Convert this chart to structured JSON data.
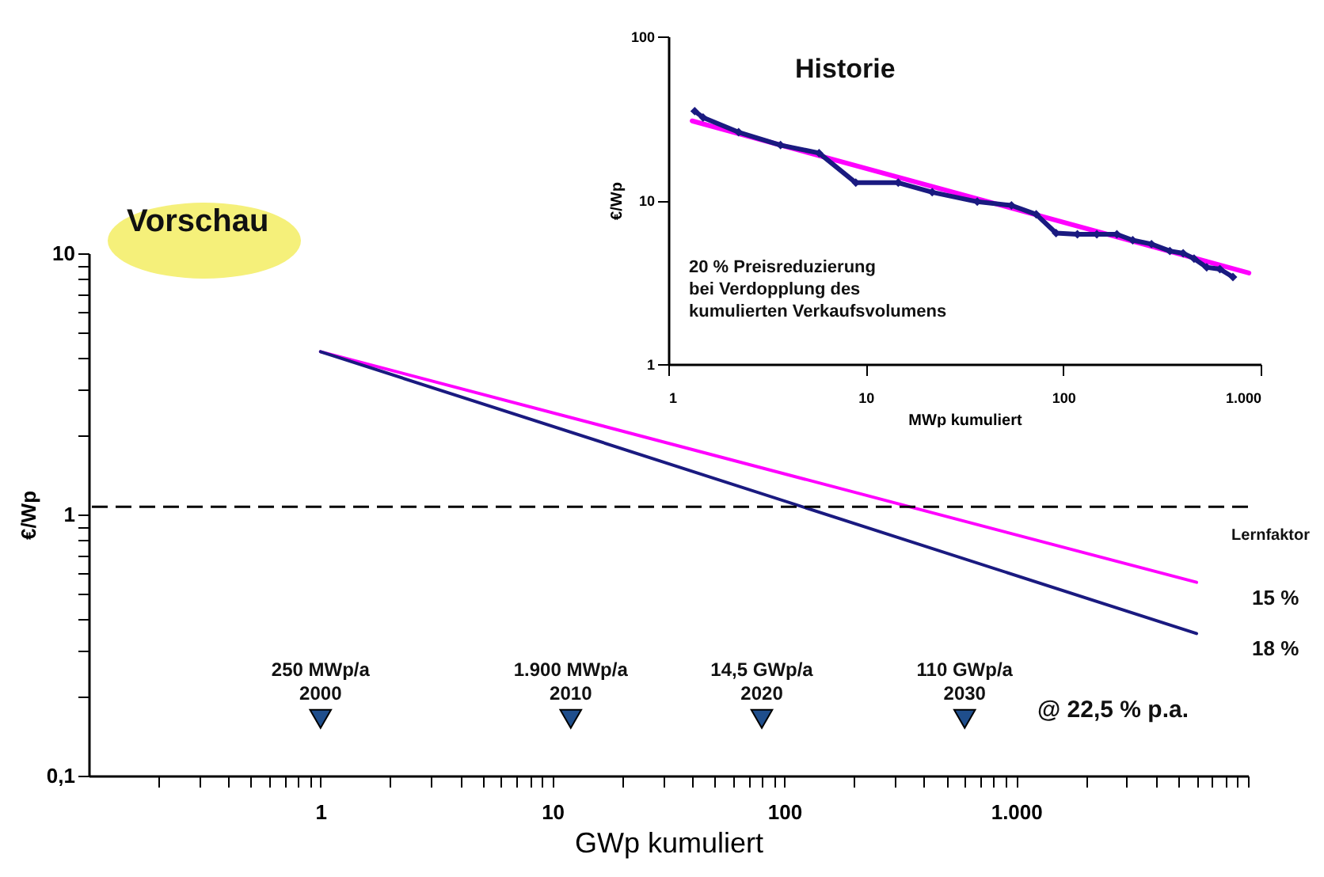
{
  "chart_data": [
    {
      "type": "line",
      "title": "Vorschau",
      "xlabel": "GWp kumuliert",
      "ylabel": "€/Wp",
      "legend_title": "Lernfaktor",
      "log": "xy",
      "xlim": [
        0.1,
        10000
      ],
      "ylim": [
        0.1,
        10
      ],
      "xticks": [
        {
          "value": 0.2,
          "label": null
        },
        {
          "value": 0.3,
          "label": null
        },
        {
          "value": 0.4,
          "label": null
        },
        {
          "value": 0.5,
          "label": null
        },
        {
          "value": 0.6,
          "label": null
        },
        {
          "value": 0.7,
          "label": null
        },
        {
          "value": 0.8,
          "label": null
        },
        {
          "value": 0.9,
          "label": null
        },
        1,
        {
          "value": 2,
          "label": null
        },
        {
          "value": 3,
          "label": null
        },
        {
          "value": 4,
          "label": null
        },
        {
          "value": 5,
          "label": null
        },
        {
          "value": 6,
          "label": null
        },
        {
          "value": 7,
          "label": null
        },
        {
          "value": 8,
          "label": null
        },
        {
          "value": 9,
          "label": null
        },
        10,
        {
          "value": 20,
          "label": null
        },
        {
          "value": 30,
          "label": null
        },
        {
          "value": 40,
          "label": null
        },
        {
          "value": 50,
          "label": null
        },
        {
          "value": 60,
          "label": null
        },
        {
          "value": 70,
          "label": null
        },
        {
          "value": 80,
          "label": null
        },
        {
          "value": 90,
          "label": null
        },
        100,
        {
          "value": 200,
          "label": null
        },
        {
          "value": 300,
          "label": null
        },
        {
          "value": 400,
          "label": null
        },
        {
          "value": 500,
          "label": null
        },
        {
          "value": 600,
          "label": null
        },
        {
          "value": 700,
          "label": null
        },
        {
          "value": 800,
          "label": null
        },
        {
          "value": 900,
          "label": null
        },
        {
          "value": 1000,
          "label": "1.000"
        },
        {
          "value": 2000,
          "label": null
        },
        {
          "value": 3000,
          "label": null
        },
        {
          "value": 4000,
          "label": null
        },
        {
          "value": 5000,
          "label": null
        },
        {
          "value": 6000,
          "label": null
        },
        {
          "value": 7000,
          "label": null
        },
        {
          "value": 8000,
          "label": null
        },
        {
          "value": 9000,
          "label": null
        },
        {
          "value": 10000,
          "label": null
        }
      ],
      "yticks": [
        {
          "value": 0.1,
          "label": "0,1"
        },
        {
          "value": 0.2,
          "label": null
        },
        {
          "value": 0.3,
          "label": null
        },
        {
          "value": 0.4,
          "label": null
        },
        {
          "value": 0.5,
          "label": null
        },
        {
          "value": 0.6,
          "label": null
        },
        {
          "value": 0.7,
          "label": null
        },
        {
          "value": 0.8,
          "label": null
        },
        {
          "value": 0.9,
          "label": null
        },
        1,
        {
          "value": 2,
          "label": null
        },
        {
          "value": 3,
          "label": null
        },
        {
          "value": 4,
          "label": null
        },
        {
          "value": 5,
          "label": null
        },
        {
          "value": 6,
          "label": null
        },
        {
          "value": 7,
          "label": null
        },
        {
          "value": 8,
          "label": null
        },
        {
          "value": 9,
          "label": null
        },
        10
      ],
      "series": [
        {
          "name": "15 %",
          "color": "#ff00ff",
          "x": [
            1,
            6000
          ],
          "values": [
            4.2,
            0.55
          ]
        },
        {
          "name": "18 %",
          "color": "#1a1a80",
          "x": [
            1,
            6000
          ],
          "values": [
            4.2,
            0.35
          ]
        },
        {
          "type": "scatter",
          "marker": "triangle",
          "color": "#1f4e8c",
          "x": [
            1,
            12,
            80,
            600
          ],
          "values": [
            0.165,
            0.165,
            0.165,
            0.165
          ]
        }
      ],
      "ref_lines": [
        {
          "axis": "y",
          "value": 1.07,
          "color": "#000000",
          "line_style": "dashed"
        }
      ],
      "annotations": [
        {
          "text": "250 MWp/a\n2000",
          "x": 1,
          "y": 0.165
        },
        {
          "text": "1.900 MWp/a\n2010",
          "x": 12,
          "y": 0.165
        },
        {
          "text": "14,5 GWp/a\n2020",
          "x": 80,
          "y": 0.165
        },
        {
          "text": "110 GWp/a\n2030",
          "x": 600,
          "y": 0.165
        },
        "@ 22,5 % p.a."
      ]
    },
    {
      "type": "line",
      "title": "Historie",
      "xlabel": "MWp kumuliert",
      "ylabel": "€/Wp",
      "log": "xy",
      "xlim": [
        1,
        1000
      ],
      "ylim": [
        1,
        100
      ],
      "xticks": [
        1,
        10,
        100,
        {
          "value": 1000,
          "label": "1.000"
        }
      ],
      "yticks": [
        1,
        10,
        100
      ],
      "annotations": [
        "20 % Preisreduzierung\nbei Verdopplung des\nkumulierten Verkaufsvolumens"
      ],
      "series": [
        {
          "color": "#ff00ff",
          "x": [
            1.32,
            872
          ],
          "values": [
            30.5,
            3.6
          ]
        },
        {
          "color": "#1a1a80",
          "marker": "diamond",
          "x": [
            1.36,
            1.5,
            2.27,
            3.7,
            5.8,
            8.9,
            14.6,
            21.7,
            36.7,
            54.7,
            73,
            92,
            118,
            148,
            187,
            225,
            280,
            347,
            405,
            460,
            533,
            622,
            724
          ],
          "values": [
            35,
            32,
            26,
            21.7,
            19.4,
            12.8,
            12.8,
            11.2,
            9.8,
            9.3,
            8.2,
            6.3,
            6.2,
            6.2,
            6.2,
            5.7,
            5.4,
            4.9,
            4.75,
            4.4,
            3.9,
            3.8,
            3.4
          ]
        }
      ]
    }
  ]
}
